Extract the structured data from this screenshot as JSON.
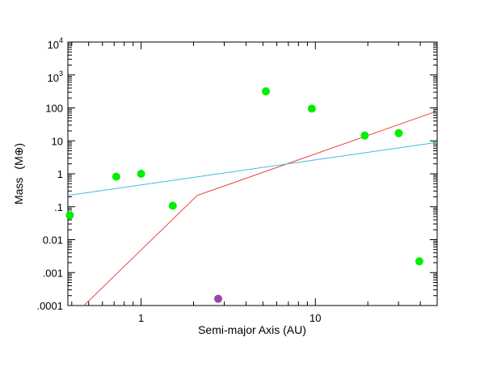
{
  "chart_data": {
    "type": "scatter",
    "title": "",
    "xlabel": "Semi-major Axis (AU)",
    "ylabel": "Mass",
    "ylabel_unit": "(M⊕)",
    "x_scale": "log",
    "y_scale": "log",
    "xlim": [
      0.38,
      50
    ],
    "ylim": [
      0.0001,
      10000
    ],
    "grid": false,
    "x_ticks": [
      {
        "value": 1,
        "label": "1"
      },
      {
        "value": 10,
        "label": "10"
      }
    ],
    "y_ticks": [
      {
        "value": 0.0001,
        "label": ".0001"
      },
      {
        "value": 0.001,
        "label": ".001"
      },
      {
        "value": 0.01,
        "label": "0.01"
      },
      {
        "value": 0.1,
        "label": ".1"
      },
      {
        "value": 1,
        "label": "1"
      },
      {
        "value": 10,
        "label": "10"
      },
      {
        "value": 100,
        "label": "100"
      },
      {
        "value": 1000,
        "label": "10",
        "exp": "3"
      },
      {
        "value": 10000,
        "label": "10",
        "exp": "4"
      }
    ],
    "scatter_series": [
      {
        "color": "#00ee00",
        "points": [
          {
            "x": 0.39,
            "y": 0.055
          },
          {
            "x": 0.72,
            "y": 0.815
          },
          {
            "x": 1.0,
            "y": 1.0
          },
          {
            "x": 1.52,
            "y": 0.107
          },
          {
            "x": 5.2,
            "y": 317.8
          },
          {
            "x": 9.54,
            "y": 95.2
          },
          {
            "x": 19.2,
            "y": 14.5
          },
          {
            "x": 30.1,
            "y": 17.1
          },
          {
            "x": 39.5,
            "y": 0.0022
          }
        ]
      },
      {
        "color": "#9944aa",
        "points": [
          {
            "x": 2.77,
            "y": 0.00016
          }
        ]
      }
    ],
    "line_series": [
      {
        "color": "#ee4444",
        "points": [
          {
            "x": 0.47,
            "y": 0.0001
          },
          {
            "x": 2.1,
            "y": 0.22
          },
          {
            "x": 50,
            "y": 80
          }
        ]
      },
      {
        "color": "#44bbdd",
        "points": [
          {
            "x": 0.38,
            "y": 0.22
          },
          {
            "x": 50,
            "y": 9
          }
        ]
      }
    ]
  }
}
